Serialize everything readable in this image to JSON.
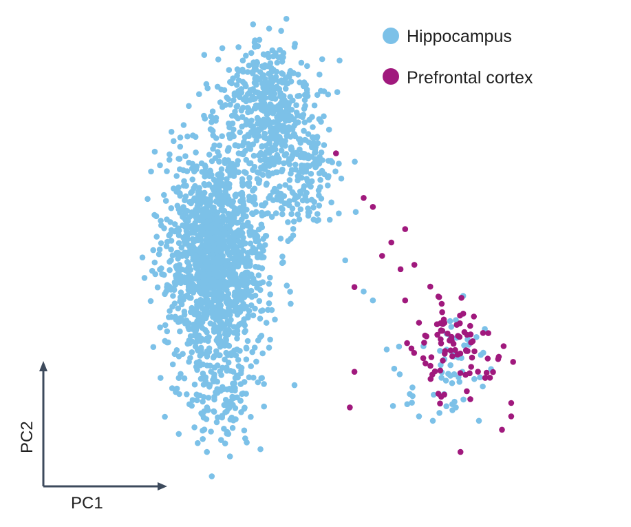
{
  "chart_data": {
    "type": "scatter",
    "title": "",
    "xlabel": "PC1",
    "ylabel": "PC2",
    "xlim": [
      0,
      100
    ],
    "ylim": [
      0,
      100
    ],
    "axis_ticks": false,
    "grid": false,
    "legend_placement": "top-right",
    "colors": {
      "axis": "#3d4a5c",
      "text": "#1f1f1f"
    },
    "series": [
      {
        "name": "Hippocampus",
        "color": "#7cc1e8",
        "density_clusters": [
          {
            "cx": 23,
            "cy": 48,
            "sx": 5.5,
            "sy": 12,
            "n": 1400
          },
          {
            "cx": 34,
            "cy": 82,
            "sx": 5,
            "sy": 7,
            "n": 420
          },
          {
            "cx": 40,
            "cy": 66,
            "sx": 5,
            "sy": 7,
            "n": 220
          },
          {
            "cx": 24,
            "cy": 18,
            "sx": 4,
            "sy": 6,
            "n": 140
          },
          {
            "cx": 74,
            "cy": 22,
            "sx": 5,
            "sy": 6,
            "n": 55
          }
        ],
        "points": [
          {
            "x": 34.5,
            "y": 99
          },
          {
            "x": 27,
            "y": 84
          },
          {
            "x": 22,
            "y": 78
          },
          {
            "x": 48,
            "y": 60
          },
          {
            "x": 43,
            "y": 57
          },
          {
            "x": 51,
            "y": 47
          },
          {
            "x": 55,
            "y": 40
          },
          {
            "x": 57,
            "y": 38
          },
          {
            "x": 60,
            "y": 27
          },
          {
            "x": 65,
            "y": 17
          },
          {
            "x": 70,
            "y": 11
          },
          {
            "x": 67,
            "y": 12
          },
          {
            "x": 75,
            "y": 14
          },
          {
            "x": 80,
            "y": 11
          },
          {
            "x": 40,
            "y": 19
          },
          {
            "x": 14,
            "y": 26
          },
          {
            "x": 15,
            "y": 17
          },
          {
            "x": 19,
            "y": 6
          },
          {
            "x": 21,
            "y": 4
          },
          {
            "x": 26,
            "y": 3
          }
        ]
      },
      {
        "name": "Prefrontal cortex",
        "color": "#a0197d",
        "density_clusters": [
          {
            "cx": 76,
            "cy": 27,
            "sx": 5,
            "sy": 5.5,
            "n": 85
          }
        ],
        "points": [
          {
            "x": 49,
            "y": 71
          },
          {
            "x": 55,
            "y": 61
          },
          {
            "x": 57,
            "y": 59
          },
          {
            "x": 64,
            "y": 54
          },
          {
            "x": 61,
            "y": 51
          },
          {
            "x": 59,
            "y": 48
          },
          {
            "x": 66,
            "y": 46
          },
          {
            "x": 63,
            "y": 45
          },
          {
            "x": 53,
            "y": 41
          },
          {
            "x": 64,
            "y": 38
          },
          {
            "x": 67,
            "y": 33
          },
          {
            "x": 53,
            "y": 22
          },
          {
            "x": 52,
            "y": 14
          },
          {
            "x": 87,
            "y": 15
          },
          {
            "x": 87,
            "y": 12
          },
          {
            "x": 85,
            "y": 9
          },
          {
            "x": 76,
            "y": 4
          }
        ]
      }
    ]
  },
  "legend": {
    "items": [
      {
        "label": "Hippocampus",
        "color": "#7cc1e8"
      },
      {
        "label": "Prefrontal cortex",
        "color": "#a0197d"
      }
    ]
  }
}
